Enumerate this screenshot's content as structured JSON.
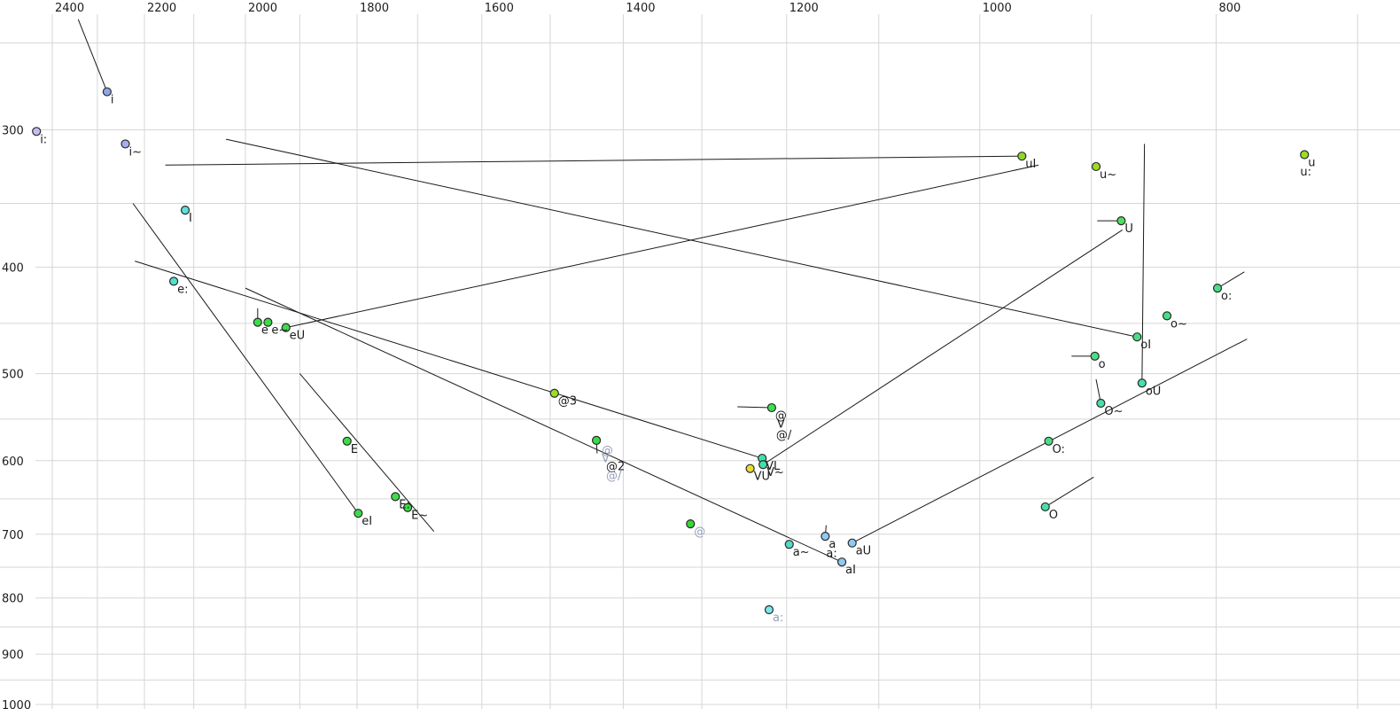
{
  "chart_data": {
    "type": "scatter",
    "title": "",
    "x_axis": {
      "position": "top",
      "unit": "Hz",
      "scale": "log",
      "reversed": true,
      "tick_labels": [
        "2400",
        "2200",
        "2000",
        "1800",
        "1600",
        "1400",
        "1200",
        "1000",
        "800"
      ],
      "tick_values": [
        2400,
        2200,
        2000,
        1800,
        1600,
        1400,
        1200,
        1000,
        800
      ],
      "gridline_values": [
        2400,
        2300,
        2200,
        2100,
        2000,
        1900,
        1800,
        1700,
        1600,
        1500,
        1400,
        1300,
        1200,
        1100,
        1000,
        900,
        800,
        700
      ],
      "range_visible": [
        2520,
        672
      ]
    },
    "y_axis": {
      "position": "left",
      "unit": "Hz",
      "scale": "log",
      "reversed": false,
      "tick_labels": [
        "300",
        "400",
        "500",
        "600",
        "700",
        "800",
        "900",
        "1000"
      ],
      "tick_values": [
        300,
        400,
        500,
        600,
        700,
        800,
        900,
        1000
      ],
      "gridline_values": [
        250,
        300,
        350,
        400,
        450,
        500,
        550,
        600,
        650,
        700,
        750,
        800,
        850,
        900,
        950,
        1000
      ],
      "range_visible": [
        229,
        1010
      ]
    },
    "grid": true,
    "legend": false,
    "points": [
      {
        "label": "i",
        "f2": 2279,
        "f1": 277,
        "color": "#8fa6e6",
        "label_color": "black"
      },
      {
        "label": "i:",
        "f2": 2436,
        "f1": 301,
        "color": "#c6bcf0",
        "label_color": "black"
      },
      {
        "label": "i~",
        "f2": 2240,
        "f1": 309,
        "color": "#a8aeea",
        "label_color": "black"
      },
      {
        "label": "I",
        "f2": 2117,
        "f1": 355,
        "color": "#5ee1da",
        "label_color": "black"
      },
      {
        "label": "e:",
        "f2": 2140,
        "f1": 412,
        "color": "#53dfcd",
        "label_color": "black"
      },
      {
        "label": "e",
        "f2": 1977,
        "f1": 449,
        "color": "#3cdc49",
        "label_color": "black"
      },
      {
        "label": "e~",
        "f2": 1958,
        "f1": 449,
        "color": "#3cdc49",
        "label_color": "black"
      },
      {
        "label": "eU",
        "f2": 1925,
        "f1": 454,
        "color": "#3cdc49",
        "label_color": "black"
      },
      {
        "label": "E",
        "f2": 1817,
        "f1": 576,
        "color": "#3cdc49",
        "label_color": "black"
      },
      {
        "label": "E:",
        "f2": 1736,
        "f1": 647,
        "color": "#3cdc49",
        "label_color": "black"
      },
      {
        "label": "E~",
        "f2": 1716,
        "f1": 662,
        "color": "#3cdc49",
        "label_color": "black"
      },
      {
        "label": "eI",
        "f2": 1798,
        "f1": 670,
        "color": "#3cdc49",
        "label_color": "black"
      },
      {
        "label": "@3",
        "f2": 1494,
        "f1": 521,
        "color": "#9bdc28",
        "label_color": "black"
      },
      {
        "label": "",
        "f2": 1436,
        "f1": 575,
        "color": "#40d947",
        "label_color": "black"
      },
      {
        "label": "",
        "f2": 1217,
        "f1": 537,
        "color": "#3edd52",
        "label_color": "black"
      },
      {
        "label": "@",
        "f2": 1314,
        "f1": 685,
        "color": "#35d838",
        "label_color": "gray"
      },
      {
        "label": "a~",
        "f2": 1197,
        "f1": 715,
        "color": "#50dcc8",
        "label_color": "black"
      },
      {
        "label": "a",
        "f2": 1157,
        "f1": 703,
        "color": "#8ecbf0",
        "label_color": "black"
      },
      {
        "label": "aI",
        "f2": 1139,
        "f1": 742,
        "color": "#8ccbf2",
        "label_color": "black"
      },
      {
        "label": "aU",
        "f2": 1128,
        "f1": 713,
        "color": "#8ecbf0",
        "label_color": "black"
      },
      {
        "label": "a:",
        "f2": 1220,
        "f1": 820,
        "color": "#7de6ec",
        "label_color": "gray"
      },
      {
        "label": "VL",
        "f2": 1228,
        "f1": 597,
        "color": "#3fe0ae",
        "label_color": "black"
      },
      {
        "label": "V~",
        "f2": 1227,
        "f1": 605,
        "color": "#3fe0ae",
        "label_color": "black"
      },
      {
        "label": "VU",
        "f2": 1242,
        "f1": 610,
        "color": "#e6df33",
        "label_color": "black"
      },
      {
        "label": "uI",
        "f2": 961,
        "f1": 317,
        "color": "#8fd929",
        "label_color": "black"
      },
      {
        "label": "u~",
        "f2": 896,
        "f1": 324,
        "color": "#a0dc22",
        "label_color": "black"
      },
      {
        "label": "u",
        "f2": 736,
        "f1": 316,
        "color": "#9ade27",
        "label_color": "black"
      },
      {
        "label": "U",
        "f2": 875,
        "f1": 363,
        "color": "#4edd62",
        "label_color": "black"
      },
      {
        "label": "o:",
        "f2": 799,
        "f1": 418,
        "color": "#4ade84",
        "label_color": "black"
      },
      {
        "label": "o~",
        "f2": 838,
        "f1": 443,
        "color": "#4ade84",
        "label_color": "black"
      },
      {
        "label": "oI",
        "f2": 862,
        "f1": 463,
        "color": "#4ade84",
        "label_color": "black"
      },
      {
        "label": "o",
        "f2": 897,
        "f1": 482,
        "color": "#4ade84",
        "label_color": "black"
      },
      {
        "label": "oU",
        "f2": 858,
        "f1": 510,
        "color": "#47e0a6",
        "label_color": "black"
      },
      {
        "label": "O~",
        "f2": 892,
        "f1": 532,
        "color": "#47e0a6",
        "label_color": "black"
      },
      {
        "label": "O:",
        "f2": 937,
        "f1": 576,
        "color": "#4ade84",
        "label_color": "black"
      },
      {
        "label": "O",
        "f2": 940,
        "f1": 661,
        "color": "#47e0a6",
        "label_color": "black"
      }
    ],
    "floating_labels": [
      {
        "text": "@",
        "f2": 1429,
        "f1": 592,
        "color": "gray"
      },
      {
        "text": "V",
        "f2": 1429,
        "f1": 602,
        "color": "gray"
      },
      {
        "text": "@2",
        "f2": 1423,
        "f1": 612,
        "color": "black"
      },
      {
        "text": "@/",
        "f2": 1423,
        "f1": 624,
        "color": "gray"
      },
      {
        "text": "@",
        "f2": 1213,
        "f1": 550,
        "color": "black"
      },
      {
        "text": "V",
        "f2": 1211,
        "f1": 560,
        "color": "black"
      },
      {
        "text": "@/",
        "f2": 1212,
        "f1": 573,
        "color": "black"
      },
      {
        "text": "a:",
        "f2": 1156,
        "f1": 734,
        "color": "black"
      },
      {
        "text": "u:",
        "f2": 739,
        "f1": 330,
        "color": "black"
      }
    ],
    "trajectories": [
      {
        "label": "i",
        "from": [
          2279,
          277
        ],
        "to": [
          2342,
          238
        ]
      },
      {
        "label": "uI",
        "from": [
          961,
          317
        ],
        "to": [
          2157,
          323
        ]
      },
      {
        "label": "eU",
        "from": [
          1925,
          454
        ],
        "to": [
          946,
          323
        ]
      },
      {
        "label": "oI",
        "from": [
          862,
          463
        ],
        "to": [
          2037,
          306
        ]
      },
      {
        "label": "eI",
        "from": [
          1798,
          670
        ],
        "to": [
          2224,
          350
        ]
      },
      {
        "label": "E:-E~",
        "from": [
          1900,
          500
        ],
        "to": [
          1674,
          696
        ]
      },
      {
        "label": "@3-VL",
        "from": [
          2220,
          395
        ],
        "to": [
          1228,
          597
        ]
      },
      {
        "label": "VL",
        "from": [
          1227,
          605
        ],
        "to": [
          874,
          370
        ]
      },
      {
        "label": "aI",
        "from": [
          1139,
          742
        ],
        "to": [
          2000,
          418
        ]
      },
      {
        "label": "aU",
        "from": [
          1128,
          713
        ],
        "to": [
          777,
          465
        ]
      },
      {
        "label": "oU",
        "from": [
          858,
          510
        ],
        "to": [
          856,
          309
        ]
      },
      {
        "label": "o:",
        "from": [
          799,
          418
        ],
        "to": [
          779,
          404
        ]
      },
      {
        "label": "o",
        "from": [
          917,
          482
        ],
        "to": [
          897,
          482
        ]
      },
      {
        "label": "O~",
        "from": [
          896,
          506
        ],
        "to": [
          892,
          532
        ]
      },
      {
        "label": "O",
        "from": [
          940,
          661
        ],
        "to": [
          898,
          621
        ]
      },
      {
        "label": "U",
        "from": [
          895,
          363
        ],
        "to": [
          875,
          363
        ]
      },
      {
        "label": "e",
        "from": [
          1977,
          436
        ],
        "to": [
          1977,
          449
        ]
      },
      {
        "label": "a",
        "from": [
          1156,
          687
        ],
        "to": [
          1157,
          703
        ]
      },
      {
        "label": "@2",
        "from": [
          1436,
          575
        ],
        "to": [
          1435,
          591
        ]
      },
      {
        "label": "@",
        "from": [
          1257,
          536
        ],
        "to": [
          1217,
          537
        ]
      }
    ],
    "colors": {
      "background": "#ffffff",
      "grid": "#d6d6d6",
      "trajectory_line": "#1a1a1a",
      "dot_outline": "#2a2a2a",
      "tick_label": "#1c1c1c",
      "label_black": "#1c1c1c",
      "label_gray": "#959dba"
    }
  }
}
